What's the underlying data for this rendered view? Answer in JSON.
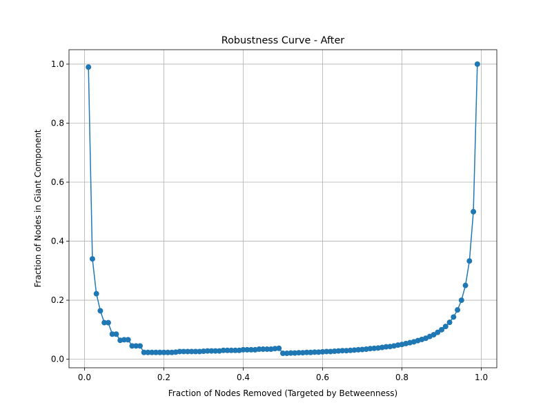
{
  "chart_data": {
    "type": "line",
    "title": "Robustness Curve - After",
    "xlabel": "Fraction of Nodes Removed (Targeted by Betweenness)",
    "ylabel": "Fraction of Nodes in Giant Component",
    "color": "#1f77b4",
    "grid": true,
    "markers": true,
    "x": [
      0.01,
      0.02,
      0.03,
      0.04,
      0.05,
      0.06,
      0.07,
      0.08,
      0.09,
      0.1,
      0.11,
      0.12,
      0.13,
      0.14,
      0.15,
      0.16,
      0.17,
      0.18,
      0.19,
      0.2,
      0.21,
      0.22,
      0.23,
      0.24,
      0.25,
      0.26,
      0.27,
      0.28,
      0.29,
      0.3,
      0.31,
      0.32,
      0.33,
      0.34,
      0.35,
      0.36,
      0.37,
      0.38,
      0.39,
      0.4,
      0.41,
      0.42,
      0.43,
      0.44,
      0.45,
      0.46,
      0.47,
      0.48,
      0.49,
      0.5,
      0.51,
      0.52,
      0.53,
      0.54,
      0.55,
      0.56,
      0.57,
      0.58,
      0.59,
      0.6,
      0.61,
      0.62,
      0.63,
      0.64,
      0.65,
      0.66,
      0.67,
      0.68,
      0.69,
      0.7,
      0.71,
      0.72,
      0.73,
      0.74,
      0.75,
      0.76,
      0.77,
      0.78,
      0.79,
      0.8,
      0.81,
      0.82,
      0.83,
      0.84,
      0.85,
      0.86,
      0.87,
      0.88,
      0.89,
      0.9,
      0.91,
      0.92,
      0.93,
      0.94,
      0.95,
      0.96,
      0.97,
      0.98,
      0.99
    ],
    "values": [
      0.99,
      0.34,
      0.222,
      0.164,
      0.124,
      0.124,
      0.085,
      0.085,
      0.064,
      0.066,
      0.066,
      0.045,
      0.045,
      0.045,
      0.023,
      0.023,
      0.023,
      0.023,
      0.023,
      0.023,
      0.023,
      0.023,
      0.024,
      0.026,
      0.026,
      0.026,
      0.026,
      0.026,
      0.026,
      0.027,
      0.028,
      0.028,
      0.028,
      0.028,
      0.03,
      0.03,
      0.03,
      0.03,
      0.03,
      0.032,
      0.032,
      0.032,
      0.032,
      0.034,
      0.034,
      0.034,
      0.034,
      0.036,
      0.037,
      0.02,
      0.02,
      0.021,
      0.021,
      0.022,
      0.022,
      0.023,
      0.023,
      0.024,
      0.024,
      0.025,
      0.026,
      0.026,
      0.027,
      0.028,
      0.029,
      0.029,
      0.03,
      0.031,
      0.032,
      0.033,
      0.034,
      0.036,
      0.037,
      0.038,
      0.04,
      0.042,
      0.043,
      0.045,
      0.048,
      0.05,
      0.053,
      0.056,
      0.059,
      0.063,
      0.067,
      0.071,
      0.077,
      0.083,
      0.091,
      0.1,
      0.111,
      0.125,
      0.143,
      0.167,
      0.2,
      0.25,
      0.333,
      0.5,
      1.0
    ],
    "xlim": [
      -0.039,
      1.039
    ],
    "ylim": [
      -0.029,
      1.049
    ],
    "xticks": [
      {
        "value": 0,
        "label": "0.0"
      },
      0.2,
      0.4,
      0.6,
      0.8,
      {
        "value": 1,
        "label": "1.0"
      }
    ],
    "yticks": [
      {
        "value": 0,
        "label": "0.0"
      },
      0.2,
      0.4,
      0.6,
      0.8,
      {
        "value": 1,
        "label": "1.0"
      }
    ]
  }
}
